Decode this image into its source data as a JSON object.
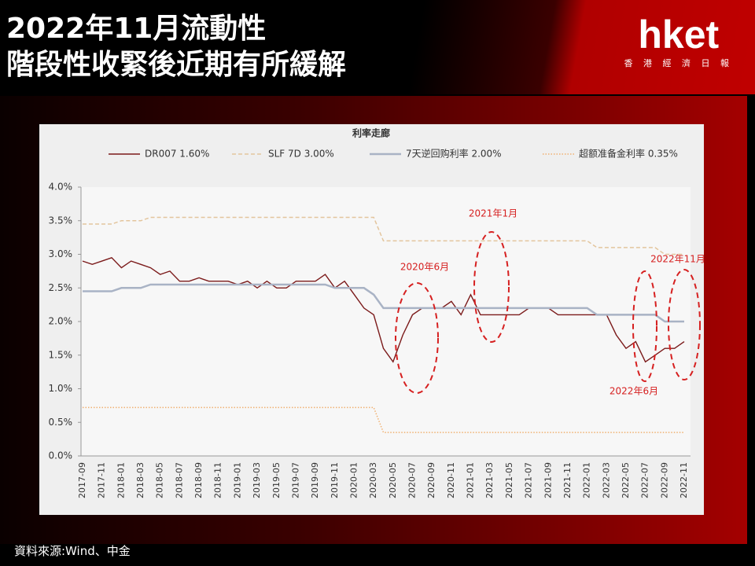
{
  "page": {
    "title_line1": "2022年11月流動性",
    "title_line2": "階段性收緊後近期有所緩解",
    "logo_name": "hket",
    "logo_tagline": "香 港 經 濟 日 報",
    "source": "資料來源:Wind、中金"
  },
  "chart_data": {
    "type": "line",
    "title": "利率走廊",
    "x": [
      "2017-09",
      null,
      "2017-11",
      null,
      "2018-01",
      null,
      "2018-03",
      null,
      "2018-05",
      null,
      "2018-07",
      null,
      "2018-09",
      null,
      "2018-11",
      null,
      "2019-01",
      null,
      "2019-03",
      null,
      "2019-05",
      null,
      "2019-07",
      null,
      "2019-09",
      null,
      "2019-11",
      null,
      "2020-01",
      null,
      "2020-03",
      null,
      "2020-05",
      null,
      "2020-07",
      null,
      "2020-09",
      null,
      "2020-11",
      null,
      "2021-01",
      null,
      "2021-03",
      null,
      "2021-05",
      null,
      "2021-07",
      null,
      "2021-09",
      null,
      "2021-11",
      null,
      "2022-01",
      null,
      "2022-03",
      null,
      "2022-05",
      null,
      "2022-07",
      null,
      "2022-09",
      null,
      "2022-11"
    ],
    "series": [
      {
        "name": "DR007 1.60%",
        "color": "#7b1a1a",
        "style": "solid",
        "values": [
          2.9,
          2.85,
          2.9,
          2.95,
          2.8,
          2.9,
          2.85,
          2.8,
          2.7,
          2.75,
          2.6,
          2.6,
          2.65,
          2.6,
          2.6,
          2.6,
          2.55,
          2.6,
          2.5,
          2.6,
          2.5,
          2.5,
          2.6,
          2.6,
          2.6,
          2.7,
          2.5,
          2.6,
          2.4,
          2.2,
          2.1,
          1.6,
          1.4,
          1.8,
          2.1,
          2.2,
          2.2,
          2.2,
          2.3,
          2.1,
          2.4,
          2.1,
          2.1,
          2.1,
          2.1,
          2.1,
          2.2,
          2.2,
          2.2,
          2.1,
          2.1,
          2.1,
          2.1,
          2.1,
          2.1,
          1.8,
          1.6,
          1.7,
          1.4,
          1.5,
          1.6,
          1.6,
          1.7
        ]
      },
      {
        "name": "SLF 7D 3.00%",
        "color": "#e3c59d",
        "style": "dashed",
        "values": [
          3.45,
          3.45,
          3.45,
          3.45,
          3.5,
          3.5,
          3.5,
          3.55,
          3.55,
          3.55,
          3.55,
          3.55,
          3.55,
          3.55,
          3.55,
          3.55,
          3.55,
          3.55,
          3.55,
          3.55,
          3.55,
          3.55,
          3.55,
          3.55,
          3.55,
          3.55,
          3.55,
          3.55,
          3.55,
          3.55,
          3.55,
          3.2,
          3.2,
          3.2,
          3.2,
          3.2,
          3.2,
          3.2,
          3.2,
          3.2,
          3.2,
          3.2,
          3.2,
          3.2,
          3.2,
          3.2,
          3.2,
          3.2,
          3.2,
          3.2,
          3.2,
          3.2,
          3.2,
          3.1,
          3.1,
          3.1,
          3.1,
          3.1,
          3.1,
          3.1,
          3.0,
          3.0,
          3.0
        ]
      },
      {
        "name": "7天逆回购利率 2.00%",
        "color": "#a9b3c5",
        "style": "thick",
        "values": [
          2.45,
          2.45,
          2.45,
          2.45,
          2.5,
          2.5,
          2.5,
          2.55,
          2.55,
          2.55,
          2.55,
          2.55,
          2.55,
          2.55,
          2.55,
          2.55,
          2.55,
          2.55,
          2.55,
          2.55,
          2.55,
          2.55,
          2.55,
          2.55,
          2.55,
          2.55,
          2.5,
          2.5,
          2.5,
          2.5,
          2.4,
          2.2,
          2.2,
          2.2,
          2.2,
          2.2,
          2.2,
          2.2,
          2.2,
          2.2,
          2.2,
          2.2,
          2.2,
          2.2,
          2.2,
          2.2,
          2.2,
          2.2,
          2.2,
          2.2,
          2.2,
          2.2,
          2.2,
          2.1,
          2.1,
          2.1,
          2.1,
          2.1,
          2.1,
          2.1,
          2.0,
          2.0,
          2.0
        ]
      },
      {
        "name": "超额准备金利率 0.35%",
        "color": "#f0b070",
        "style": "dotted",
        "values": [
          0.72,
          0.72,
          0.72,
          0.72,
          0.72,
          0.72,
          0.72,
          0.72,
          0.72,
          0.72,
          0.72,
          0.72,
          0.72,
          0.72,
          0.72,
          0.72,
          0.72,
          0.72,
          0.72,
          0.72,
          0.72,
          0.72,
          0.72,
          0.72,
          0.72,
          0.72,
          0.72,
          0.72,
          0.72,
          0.72,
          0.72,
          0.35,
          0.35,
          0.35,
          0.35,
          0.35,
          0.35,
          0.35,
          0.35,
          0.35,
          0.35,
          0.35,
          0.35,
          0.35,
          0.35,
          0.35,
          0.35,
          0.35,
          0.35,
          0.35,
          0.35,
          0.35,
          0.35,
          0.35,
          0.35,
          0.35,
          0.35,
          0.35,
          0.35,
          0.35,
          0.35,
          0.35,
          0.35
        ]
      }
    ],
    "ylim": [
      0,
      4
    ],
    "yticks": [
      {
        "value": 0,
        "label": "0.0%"
      },
      {
        "value": 0.5,
        "label": "0.5%"
      },
      {
        "value": 1,
        "label": "1.0%"
      },
      {
        "value": 1.5,
        "label": "1.5%"
      },
      {
        "value": 2,
        "label": "2.0%"
      },
      {
        "value": 2.5,
        "label": "2.5%"
      },
      {
        "value": 3,
        "label": "3.0%"
      },
      {
        "value": 3.5,
        "label": "3.5%"
      },
      {
        "value": 4,
        "label": "4.0%"
      }
    ],
    "annotations": [
      "2020年6月",
      "2021年1月",
      "2022年11月",
      "2022年6月"
    ]
  }
}
